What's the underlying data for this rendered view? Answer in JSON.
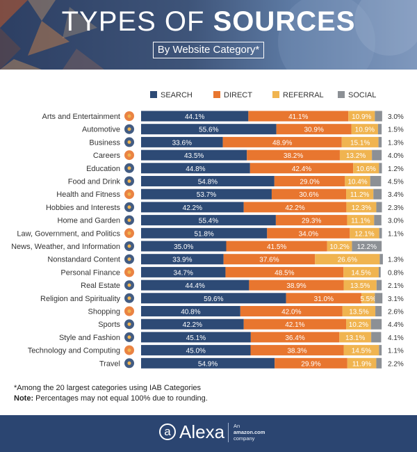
{
  "header": {
    "title_light": "TYPES OF ",
    "title_bold": "SOURCES",
    "subtitle": "By Website Category*"
  },
  "colors": {
    "search": "#2d4a75",
    "direct": "#e8762f",
    "referral": "#f0b450",
    "social": "#8c9095",
    "header_bg": "#34476b",
    "footer_bg": "#2b4571"
  },
  "chart_data": {
    "type": "bar",
    "orientation": "horizontal",
    "stacked": true,
    "categories": [
      "Arts and Entertainment",
      "Automotive",
      "Business",
      "Careers",
      "Education",
      "Food and Drink",
      "Health and Fitness",
      "Hobbies and Interests",
      "Home and Garden",
      "Law, Government, and Politics",
      "News, Weather, and Information",
      "Nonstandard Content",
      "Personal Finance",
      "Real Estate",
      "Religion and Spirituality",
      "Shopping",
      "Sports",
      "Style and Fashion",
      "Technology and Computing",
      "Travel"
    ],
    "icons": [
      "theater-masks-icon",
      "car-wheel-icon",
      "rising-chart-icon",
      "briefcase-icon",
      "graduation-cap-icon",
      "food-plate-icon",
      "heart-pulse-icon",
      "hobby-tools-icon",
      "house-icon",
      "capitol-building-icon",
      "newspaper-icon",
      "chat-bubble-icon",
      "money-bag-icon",
      "house-sign-icon",
      "spiritual-symbol-icon",
      "shopping-bag-icon",
      "trophy-icon",
      "clothes-hanger-icon",
      "circuit-chip-icon",
      "suitcase-icon"
    ],
    "series": [
      {
        "name": "SEARCH",
        "values": [
          44.1,
          55.6,
          33.6,
          43.5,
          44.8,
          54.8,
          53.7,
          42.2,
          55.4,
          51.8,
          35.0,
          33.9,
          34.7,
          44.4,
          59.6,
          40.8,
          42.2,
          45.1,
          45.0,
          54.9
        ]
      },
      {
        "name": "DIRECT",
        "values": [
          41.1,
          30.9,
          48.9,
          38.2,
          42.4,
          29.0,
          30.6,
          42.2,
          29.3,
          34.0,
          41.5,
          37.6,
          48.5,
          38.9,
          31.0,
          42.0,
          42.1,
          36.4,
          38.3,
          29.9
        ]
      },
      {
        "name": "REFERRAL",
        "values": [
          10.9,
          10.9,
          15.1,
          13.2,
          10.6,
          10.4,
          11.2,
          12.3,
          11.1,
          12.1,
          10.2,
          26.6,
          14.5,
          13.5,
          5.5,
          13.5,
          10.2,
          13.1,
          14.5,
          11.9
        ]
      },
      {
        "name": "SOCIAL",
        "values": [
          3.0,
          1.5,
          1.3,
          4.0,
          1.2,
          4.5,
          3.4,
          2.3,
          3.0,
          1.1,
          12.2,
          1.3,
          0.8,
          2.1,
          3.1,
          2.6,
          4.4,
          4.1,
          1.1,
          2.2
        ]
      }
    ],
    "value_format": "%",
    "legend_position": "top",
    "xlim": [
      0,
      100
    ]
  },
  "footnote": {
    "line1": "*Among the 20 largest categories using IAB Categories",
    "note_label": "Note:",
    "line2": " Percentages may not equal 100% due to rounding."
  },
  "footer": {
    "logo_letter": "a",
    "logo_name": "Alexa",
    "tag_line1": "An",
    "tag_line2": "amazon.com",
    "tag_line3": "company"
  }
}
